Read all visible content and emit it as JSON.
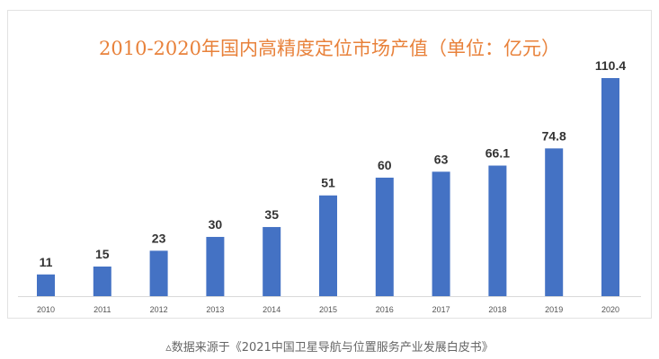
{
  "chart_data": {
    "type": "bar",
    "title": "2010-2020年国内高精度定位市场产值（单位：亿元）",
    "categories": [
      "2010",
      "2011",
      "2012",
      "2013",
      "2014",
      "2015",
      "2016",
      "2017",
      "2018",
      "2019",
      "2020"
    ],
    "values": [
      11,
      15,
      23,
      30,
      35,
      51,
      60,
      63,
      66.1,
      74.8,
      110.4
    ],
    "data_labels": [
      "11",
      "15",
      "23",
      "30",
      "35",
      "51",
      "60",
      "63",
      "66.1",
      "74.8",
      "110.4"
    ],
    "xlabel": "",
    "ylabel": "",
    "ylim": [
      0,
      110.4
    ],
    "grid": false,
    "bar_color": "#4472c4",
    "title_color": "#e8813a"
  },
  "caption": "▵数据来源于《2021中国卫星导航与位置服务产业发展白皮书》"
}
